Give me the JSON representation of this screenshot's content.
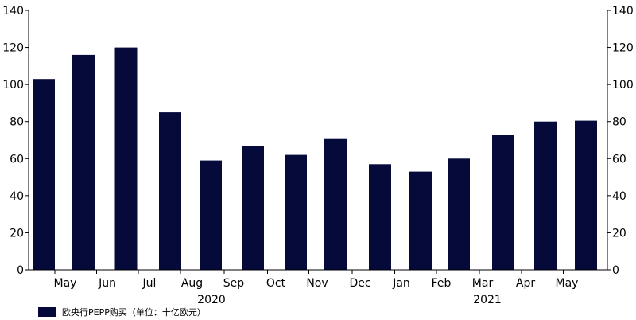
{
  "chart_data": {
    "type": "bar",
    "categories": [
      "Apr",
      "May",
      "Jun",
      "Jul",
      "Aug",
      "Sep",
      "Oct",
      "Nov",
      "Dec",
      "Jan",
      "Feb",
      "Mar",
      "Apr",
      "May"
    ],
    "tick_labels": [
      "May",
      "Jun",
      "Jul",
      "Aug",
      "Sep",
      "Oct",
      "Nov",
      "Dec",
      "Jan",
      "Feb",
      "Mar",
      "Apr",
      "May"
    ],
    "year_labels": [
      "2020",
      "2021"
    ],
    "series": [
      {
        "name": "欧央行PEPP购买（单位：十亿欧元）",
        "values": [
          103,
          116,
          120,
          85,
          59,
          67,
          62,
          71,
          57,
          53,
          60,
          73,
          80,
          80.5
        ],
        "color": "#050a3a"
      }
    ],
    "ylim": [
      0,
      140
    ],
    "yticks": [
      0,
      20,
      40,
      60,
      80,
      100,
      120,
      140
    ],
    "y_axes": "both",
    "grid": false,
    "legend_position": "bottom-left",
    "xlabel": "",
    "ylabel": ""
  }
}
